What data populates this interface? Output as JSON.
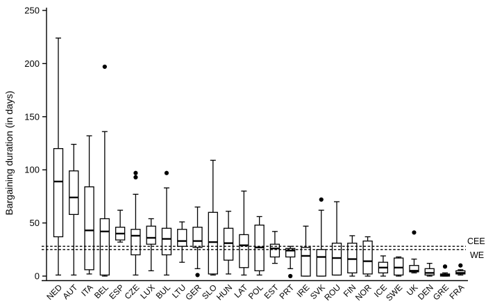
{
  "figure": {
    "background": "#ffffff",
    "ink_color": "#000000",
    "box_fill": "#ffffff"
  },
  "chart_data": {
    "type": "boxplot",
    "title": "",
    "xlabel": "",
    "ylabel": "Bargaining duration (in days)",
    "ylim": [
      0,
      250
    ],
    "yticks": [
      0,
      50,
      100,
      150,
      200,
      250
    ],
    "grid": false,
    "legend": "none",
    "categories": [
      "NED",
      "AUT",
      "ITA",
      "BEL",
      "ESP",
      "CZE",
      "LUX",
      "BUL",
      "LTU",
      "GER",
      "SLO",
      "HUN",
      "LAT",
      "POL",
      "EST",
      "PRT",
      "IRE",
      "SVK",
      "ROU",
      "FIN",
      "NOR",
      "ICE",
      "SWE",
      "UK",
      "DEN",
      "GRE",
      "FRA"
    ],
    "series": [
      {
        "name": "bargaining_duration_days",
        "boxes": [
          {
            "label": "NED",
            "whislo": 1,
            "q1": 37,
            "med": 89,
            "q3": 120,
            "whishi": 224,
            "outliers": []
          },
          {
            "label": "AUT",
            "whislo": 1,
            "q1": 58,
            "med": 74,
            "q3": 99,
            "whishi": 124,
            "outliers": []
          },
          {
            "label": "ITA",
            "whislo": 2,
            "q1": 6,
            "med": 43,
            "q3": 84,
            "whishi": 132,
            "outliers": []
          },
          {
            "label": "BEL",
            "whislo": 0,
            "q1": 1,
            "med": 42,
            "q3": 54,
            "whishi": 136,
            "outliers": [
              197
            ]
          },
          {
            "label": "ESP",
            "whislo": 32,
            "q1": 34,
            "med": 40,
            "q3": 46,
            "whishi": 62,
            "outliers": []
          },
          {
            "label": "CZE",
            "whislo": 1,
            "q1": 20,
            "med": 38,
            "q3": 44,
            "whishi": 77,
            "outliers": [
              93,
              97
            ]
          },
          {
            "label": "LUX",
            "whislo": 5,
            "q1": 30,
            "med": 36,
            "q3": 47,
            "whishi": 54,
            "outliers": []
          },
          {
            "label": "BUL",
            "whislo": 1,
            "q1": 20,
            "med": 35,
            "q3": 45,
            "whishi": 83,
            "outliers": [
              97
            ]
          },
          {
            "label": "LTU",
            "whislo": 13,
            "q1": 28,
            "med": 33,
            "q3": 44,
            "whishi": 51,
            "outliers": []
          },
          {
            "label": "GER",
            "whislo": 7,
            "q1": 27,
            "med": 33,
            "q3": 46,
            "whishi": 65,
            "outliers": [
              1
            ]
          },
          {
            "label": "SLO",
            "whislo": 1,
            "q1": 2,
            "med": 32,
            "q3": 60,
            "whishi": 109,
            "outliers": []
          },
          {
            "label": "HUN",
            "whislo": 2,
            "q1": 15,
            "med": 31,
            "q3": 45,
            "whishi": 61,
            "outliers": []
          },
          {
            "label": "LAT",
            "whislo": 1,
            "q1": 8,
            "med": 29,
            "q3": 39,
            "whishi": 80,
            "outliers": []
          },
          {
            "label": "POL",
            "whislo": 1,
            "q1": 5,
            "med": 27,
            "q3": 48,
            "whishi": 56,
            "outliers": []
          },
          {
            "label": "EST",
            "whislo": 12,
            "q1": 18,
            "med": 26,
            "q3": 30,
            "whishi": 42,
            "outliers": []
          },
          {
            "label": "PRT",
            "whislo": 7,
            "q1": 18,
            "med": 24,
            "q3": 26,
            "whishi": 28,
            "outliers": [
              0
            ]
          },
          {
            "label": "IRE",
            "whislo": 0,
            "q1": 0,
            "med": 19,
            "q3": 27,
            "whishi": 47,
            "outliers": []
          },
          {
            "label": "SVK",
            "whislo": 0,
            "q1": 0,
            "med": 18,
            "q3": 25,
            "whishi": 62,
            "outliers": [
              72
            ]
          },
          {
            "label": "ROU",
            "whislo": 1,
            "q1": 1,
            "med": 17,
            "q3": 31,
            "whishi": 70,
            "outliers": []
          },
          {
            "label": "FIN",
            "whislo": 0,
            "q1": 3,
            "med": 16,
            "q3": 31,
            "whishi": 38,
            "outliers": []
          },
          {
            "label": "NOR",
            "whislo": 0,
            "q1": 2,
            "med": 14,
            "q3": 33,
            "whishi": 37,
            "outliers": []
          },
          {
            "label": "ICE",
            "whislo": 0,
            "q1": 3,
            "med": 8,
            "q3": 13,
            "whishi": 19,
            "outliers": []
          },
          {
            "label": "SWE",
            "whislo": 0,
            "q1": 1,
            "med": 8,
            "q3": 17,
            "whishi": 18,
            "outliers": []
          },
          {
            "label": "UK",
            "whislo": 3,
            "q1": 4,
            "med": 5,
            "q3": 10,
            "whishi": 16,
            "outliers": [
              41
            ]
          },
          {
            "label": "DEN",
            "whislo": 0,
            "q1": 1,
            "med": 3,
            "q3": 7,
            "whishi": 12,
            "outliers": []
          },
          {
            "label": "GRE",
            "whislo": 0,
            "q1": 0,
            "med": 1,
            "q3": 2,
            "whishi": 3,
            "outliers": [
              9
            ]
          },
          {
            "label": "FRA",
            "whislo": 1,
            "q1": 2,
            "med": 3,
            "q3": 5,
            "whishi": 6,
            "outliers": [
              10
            ]
          }
        ]
      }
    ],
    "reference_lines": [
      {
        "label": "CEE",
        "value": 28,
        "style": "dashed"
      },
      {
        "label": "WE",
        "value": 25,
        "style": "dashed"
      }
    ]
  }
}
